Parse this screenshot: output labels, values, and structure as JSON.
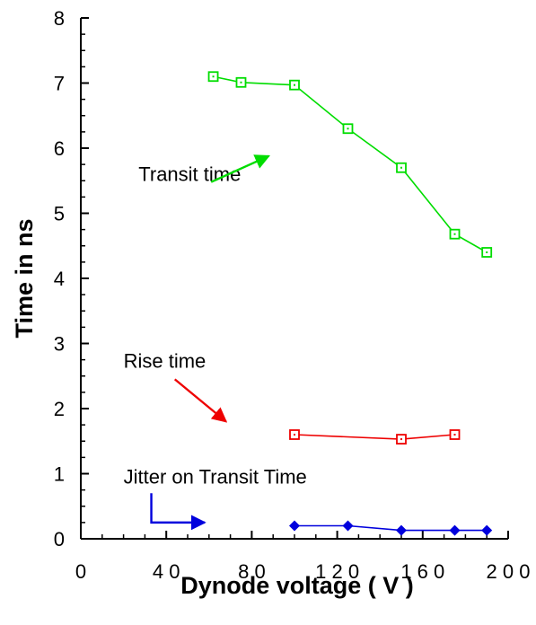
{
  "chart_data": {
    "type": "line",
    "xlabel": "Dynode voltage ( V )",
    "ylabel": "Time in ns",
    "xlim": [
      0,
      200
    ],
    "ylim": [
      0,
      8
    ],
    "x_ticks": [
      0,
      40,
      80,
      120,
      160,
      200
    ],
    "x_tick_labels": [
      "0",
      "4 0",
      "8 0",
      "1 2 0",
      "1 6 0",
      "2 0 0"
    ],
    "y_ticks": [
      0,
      1,
      2,
      3,
      4,
      5,
      6,
      7,
      8
    ],
    "y_tick_labels": [
      "0",
      "1",
      "2",
      "3",
      "4",
      "5",
      "6",
      "7",
      "8"
    ],
    "grid": false,
    "series": [
      {
        "name": "Transit time",
        "color": "#00dd00",
        "marker": "square-dot",
        "x": [
          62,
          75,
          100,
          125,
          150,
          175,
          190
        ],
        "y": [
          7.1,
          7.01,
          6.97,
          6.3,
          5.7,
          4.68,
          4.4
        ]
      },
      {
        "name": "Rise time",
        "color": "#ee0000",
        "marker": "square-dot",
        "x": [
          100,
          150,
          175
        ],
        "y": [
          1.6,
          1.53,
          1.6
        ]
      },
      {
        "name": "Jitter on Transit Time",
        "color": "#0000dd",
        "marker": "diamond",
        "x": [
          100,
          125,
          150,
          175,
          190
        ],
        "y": [
          0.2,
          0.2,
          0.13,
          0.13,
          0.13
        ]
      }
    ],
    "annotations": [
      {
        "series": 0,
        "text": "Transit time",
        "text_at": [
          27,
          5.5
        ],
        "arrow": {
          "from": [
            61,
            5.48
          ],
          "to": [
            88,
            5.88
          ]
        }
      },
      {
        "series": 1,
        "text": "Rise time",
        "text_at": [
          20,
          2.63
        ],
        "arrow": {
          "from": [
            44,
            2.45
          ],
          "to": [
            68,
            1.8
          ]
        }
      },
      {
        "series": 2,
        "text": "Jitter on Transit Time",
        "text_at": [
          20,
          0.85
        ],
        "arrow": {
          "from": [
            33,
            0.7
          ],
          "to": [
            33,
            0.25
          ],
          "to2": [
            58,
            0.25
          ]
        }
      }
    ]
  }
}
